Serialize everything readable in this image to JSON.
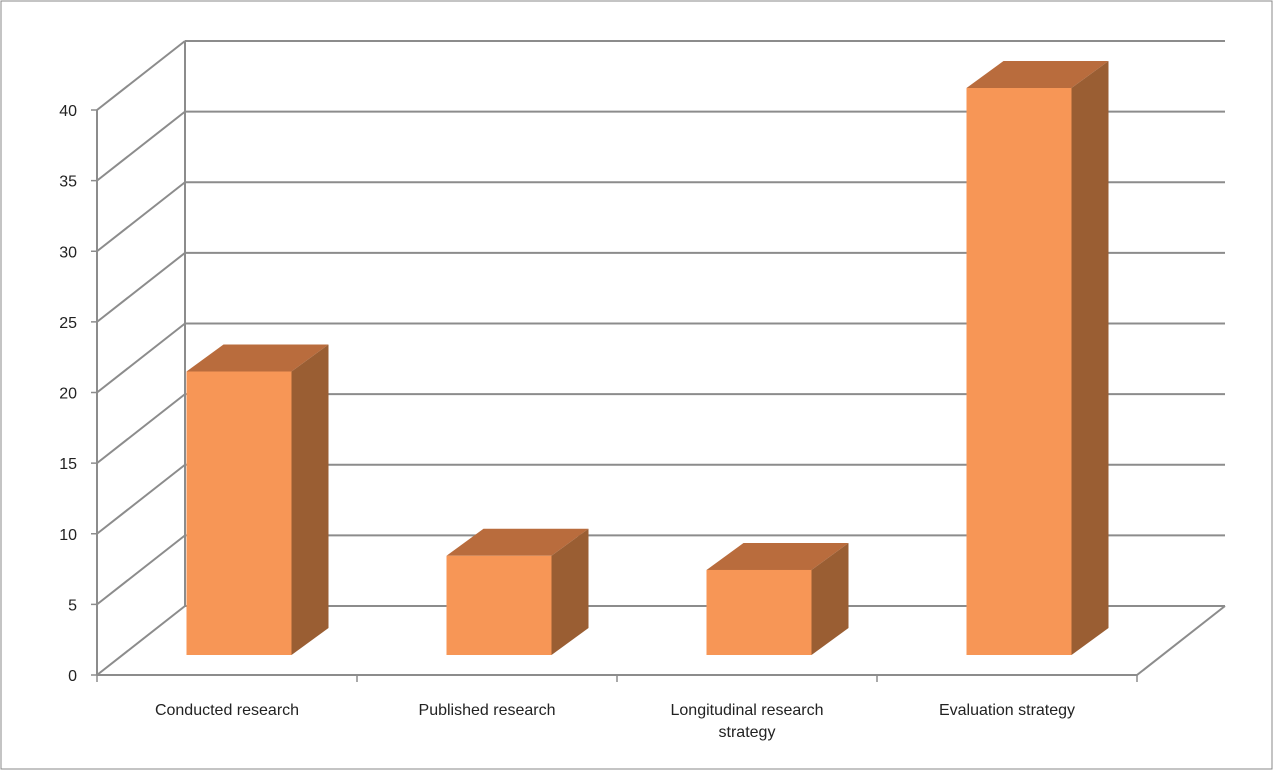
{
  "chart_data": {
    "type": "bar",
    "three_d": true,
    "categories": [
      [
        "Conducted research"
      ],
      [
        "Published research"
      ],
      [
        "Longitudinal research",
        "strategy"
      ],
      [
        "Evaluation strategy"
      ]
    ],
    "values": [
      20,
      7,
      6,
      40
    ],
    "y_ticks": [
      "0",
      "5",
      "10",
      "15",
      "20",
      "25",
      "30",
      "35",
      "40"
    ],
    "ylim": [
      0,
      40
    ],
    "grid": true,
    "legend": "none",
    "title": "",
    "xlabel": "",
    "ylabel": ""
  },
  "colors": {
    "bar_front": "#F79656",
    "bar_top": "#B96C3D",
    "bar_side": "#9A5E33",
    "gridline": "#8C8C8C",
    "border": "#888888"
  }
}
